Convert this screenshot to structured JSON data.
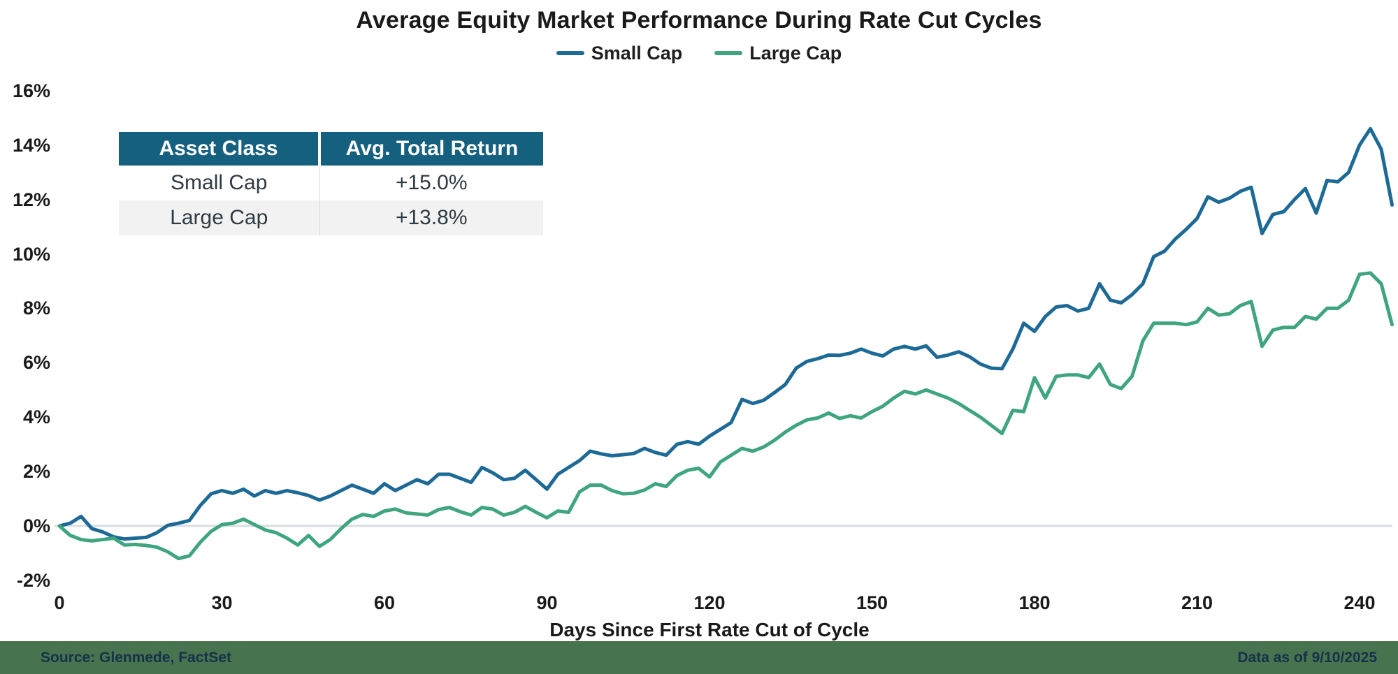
{
  "chart_data": {
    "type": "line",
    "title": "Average Equity Market Performance During Rate Cut Cycles",
    "xlabel": "Days Since First Rate Cut of Cycle",
    "ylabel": "",
    "x_ticks": [
      "0",
      "30",
      "60",
      "90",
      "120",
      "150",
      "180",
      "210",
      "240"
    ],
    "y_ticks": [
      "16%",
      "14%",
      "12%",
      "10%",
      "8%",
      "6%",
      "4%",
      "2%",
      "0%",
      "-2%"
    ],
    "xlim": [
      0,
      246
    ],
    "ylim": [
      -2.5,
      16.5
    ],
    "grid": "zero-baseline-only",
    "legend_position": "top-center",
    "baseline_value": 0,
    "x_days": [
      0,
      2,
      4,
      6,
      8,
      10,
      12,
      14,
      16,
      18,
      20,
      22,
      24,
      26,
      28,
      30,
      32,
      34,
      36,
      38,
      40,
      42,
      44,
      46,
      48,
      50,
      52,
      54,
      56,
      58,
      60,
      62,
      64,
      66,
      68,
      70,
      72,
      74,
      76,
      78,
      80,
      82,
      84,
      86,
      88,
      90,
      92,
      94,
      96,
      98,
      100,
      102,
      104,
      106,
      108,
      110,
      112,
      114,
      116,
      118,
      120,
      122,
      124,
      126,
      128,
      130,
      132,
      134,
      136,
      138,
      140,
      142,
      144,
      146,
      148,
      150,
      152,
      154,
      156,
      158,
      160,
      162,
      164,
      166,
      168,
      170,
      172,
      174,
      176,
      178,
      180,
      182,
      184,
      186,
      188,
      190,
      192,
      194,
      196,
      198,
      200,
      202,
      204,
      206,
      208,
      210,
      212,
      214,
      216,
      218,
      220,
      222,
      224,
      226,
      228,
      230,
      232,
      234,
      236,
      238,
      240,
      242,
      244,
      246
    ],
    "series": [
      {
        "name": "Small Cap",
        "color": "#1D6A96",
        "avg_total_return": "+15.0%",
        "values": [
          0.0,
          0.1,
          0.35,
          -0.1,
          -0.22,
          -0.4,
          -0.48,
          -0.45,
          -0.42,
          -0.25,
          0.02,
          0.1,
          0.2,
          0.75,
          1.18,
          1.3,
          1.2,
          1.35,
          1.1,
          1.3,
          1.2,
          1.3,
          1.22,
          1.12,
          0.95,
          1.1,
          1.3,
          1.5,
          1.35,
          1.2,
          1.55,
          1.3,
          1.5,
          1.7,
          1.55,
          1.9,
          1.9,
          1.75,
          1.6,
          2.15,
          1.95,
          1.7,
          1.75,
          2.05,
          1.7,
          1.35,
          1.9,
          2.15,
          2.4,
          2.75,
          2.65,
          2.58,
          2.62,
          2.66,
          2.85,
          2.7,
          2.6,
          3.0,
          3.1,
          3.0,
          3.3,
          3.55,
          3.8,
          4.65,
          4.5,
          4.62,
          4.9,
          5.2,
          5.8,
          6.05,
          6.15,
          6.28,
          6.27,
          6.35,
          6.5,
          6.35,
          6.25,
          6.5,
          6.6,
          6.5,
          6.62,
          6.2,
          6.28,
          6.4,
          6.22,
          5.95,
          5.8,
          5.78,
          6.5,
          7.45,
          7.15,
          7.7,
          8.05,
          8.1,
          7.9,
          8.0,
          8.9,
          8.3,
          8.2,
          8.5,
          8.9,
          9.9,
          10.1,
          10.55,
          10.9,
          11.3,
          12.1,
          11.9,
          12.05,
          12.3,
          12.45,
          10.75,
          11.45,
          11.55,
          12.0,
          12.4,
          11.5,
          12.7,
          12.65,
          13.0,
          14.0,
          14.6,
          13.85,
          11.8
        ]
      },
      {
        "name": "Large Cap",
        "color": "#3FA57E",
        "avg_total_return": "+13.8%",
        "values": [
          0.0,
          -0.35,
          -0.5,
          -0.55,
          -0.5,
          -0.45,
          -0.7,
          -0.68,
          -0.72,
          -0.78,
          -0.95,
          -1.2,
          -1.1,
          -0.6,
          -0.2,
          0.05,
          0.1,
          0.25,
          0.05,
          -0.15,
          -0.25,
          -0.45,
          -0.7,
          -0.35,
          -0.75,
          -0.5,
          -0.1,
          0.25,
          0.42,
          0.35,
          0.55,
          0.62,
          0.48,
          0.44,
          0.4,
          0.6,
          0.68,
          0.52,
          0.4,
          0.68,
          0.62,
          0.4,
          0.5,
          0.72,
          0.5,
          0.3,
          0.55,
          0.5,
          1.25,
          1.5,
          1.5,
          1.3,
          1.18,
          1.2,
          1.32,
          1.55,
          1.45,
          1.85,
          2.05,
          2.12,
          1.8,
          2.35,
          2.6,
          2.85,
          2.75,
          2.9,
          3.15,
          3.45,
          3.7,
          3.9,
          3.97,
          4.15,
          3.95,
          4.05,
          3.97,
          4.2,
          4.4,
          4.7,
          4.95,
          4.85,
          5.0,
          4.85,
          4.7,
          4.5,
          4.25,
          4.0,
          3.7,
          3.4,
          4.25,
          4.2,
          5.45,
          4.7,
          5.5,
          5.55,
          5.55,
          5.45,
          5.95,
          5.2,
          5.05,
          5.5,
          6.8,
          7.45,
          7.45,
          7.45,
          7.4,
          7.5,
          8.0,
          7.75,
          7.8,
          8.1,
          8.25,
          6.6,
          7.2,
          7.3,
          7.3,
          7.7,
          7.6,
          8.0,
          8.0,
          8.3,
          9.25,
          9.3,
          8.9,
          7.4
        ]
      }
    ]
  },
  "inset_table": {
    "headers": [
      "Asset Class",
      "Avg. Total Return"
    ],
    "rows": [
      [
        "Small Cap",
        "+15.0%"
      ],
      [
        "Large Cap",
        "+13.8%"
      ]
    ],
    "header_bg": "#16607F",
    "alt_row_bg": "#F2F2F2"
  },
  "footer": {
    "source": "Source: Glenmede, FactSet",
    "data_as_of": "Data as of 9/10/2025",
    "band_color": "#47734F",
    "text_color": "#16324A"
  },
  "colors": {
    "baseline_line": "#D9DEE3",
    "text": "#1A1A1A",
    "background": "#FFFFFF"
  }
}
